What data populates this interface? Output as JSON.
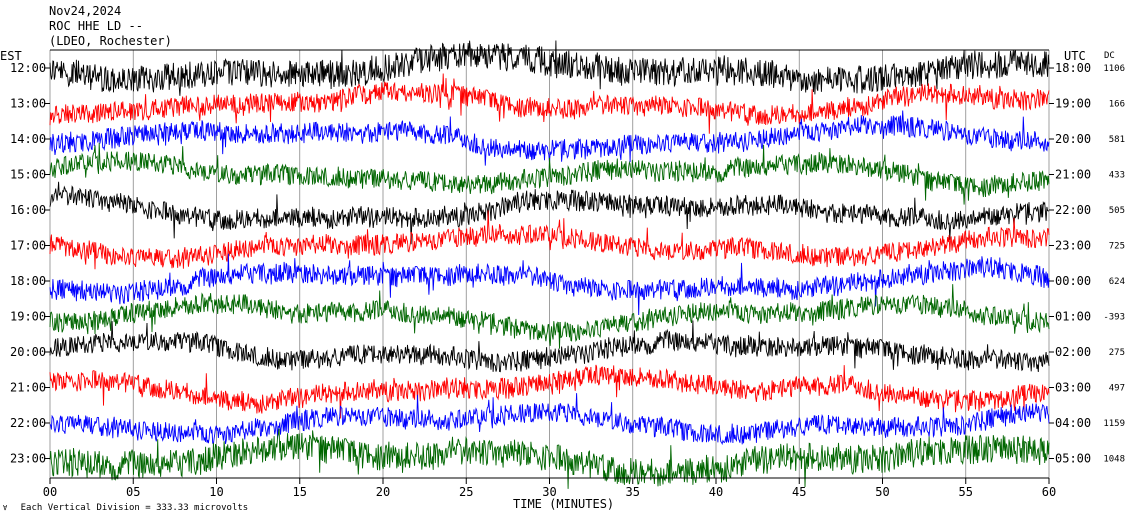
{
  "header": {
    "date": "Nov24,2024",
    "station": "ROC HHE LD --",
    "network": "(LDEO, Rochester)"
  },
  "labels": {
    "left_zone": "EST",
    "right_zone": "UTC",
    "dc_header": "DC",
    "x_axis_title": "TIME (MINUTES)",
    "footer": "Each Vertical Division =  333.33 microvolts"
  },
  "chart_data": {
    "type": "line",
    "title": "",
    "xlabel": "TIME (MINUTES)",
    "ylabel": "",
    "xlim": [
      0,
      60
    ],
    "x_ticks": [
      "00",
      "05",
      "10",
      "15",
      "20",
      "25",
      "30",
      "35",
      "40",
      "45",
      "50",
      "55",
      "60"
    ],
    "grid": "vertical lines every 5 minutes",
    "trace_colors": [
      "#000000",
      "#ff0000",
      "#0000ff",
      "#006600"
    ],
    "rows": [
      {
        "est": "12:00",
        "utc": "18:00",
        "dc": "1106"
      },
      {
        "est": "13:00",
        "utc": "19:00",
        "dc": "166"
      },
      {
        "est": "14:00",
        "utc": "20:00",
        "dc": "581"
      },
      {
        "est": "15:00",
        "utc": "21:00",
        "dc": "433"
      },
      {
        "est": "16:00",
        "utc": "22:00",
        "dc": "505"
      },
      {
        "est": "17:00",
        "utc": "23:00",
        "dc": "725"
      },
      {
        "est": "18:00",
        "utc": "00:00",
        "dc": "624"
      },
      {
        "est": "19:00",
        "utc": "01:00",
        "dc": "-393"
      },
      {
        "est": "20:00",
        "utc": "02:00",
        "dc": "275"
      },
      {
        "est": "21:00",
        "utc": "03:00",
        "dc": "497"
      },
      {
        "est": "22:00",
        "utc": "04:00",
        "dc": "1159"
      },
      {
        "est": "23:00",
        "utc": "05:00",
        "dc": "1048"
      }
    ],
    "vertical_division": "333.33 microvolts"
  }
}
